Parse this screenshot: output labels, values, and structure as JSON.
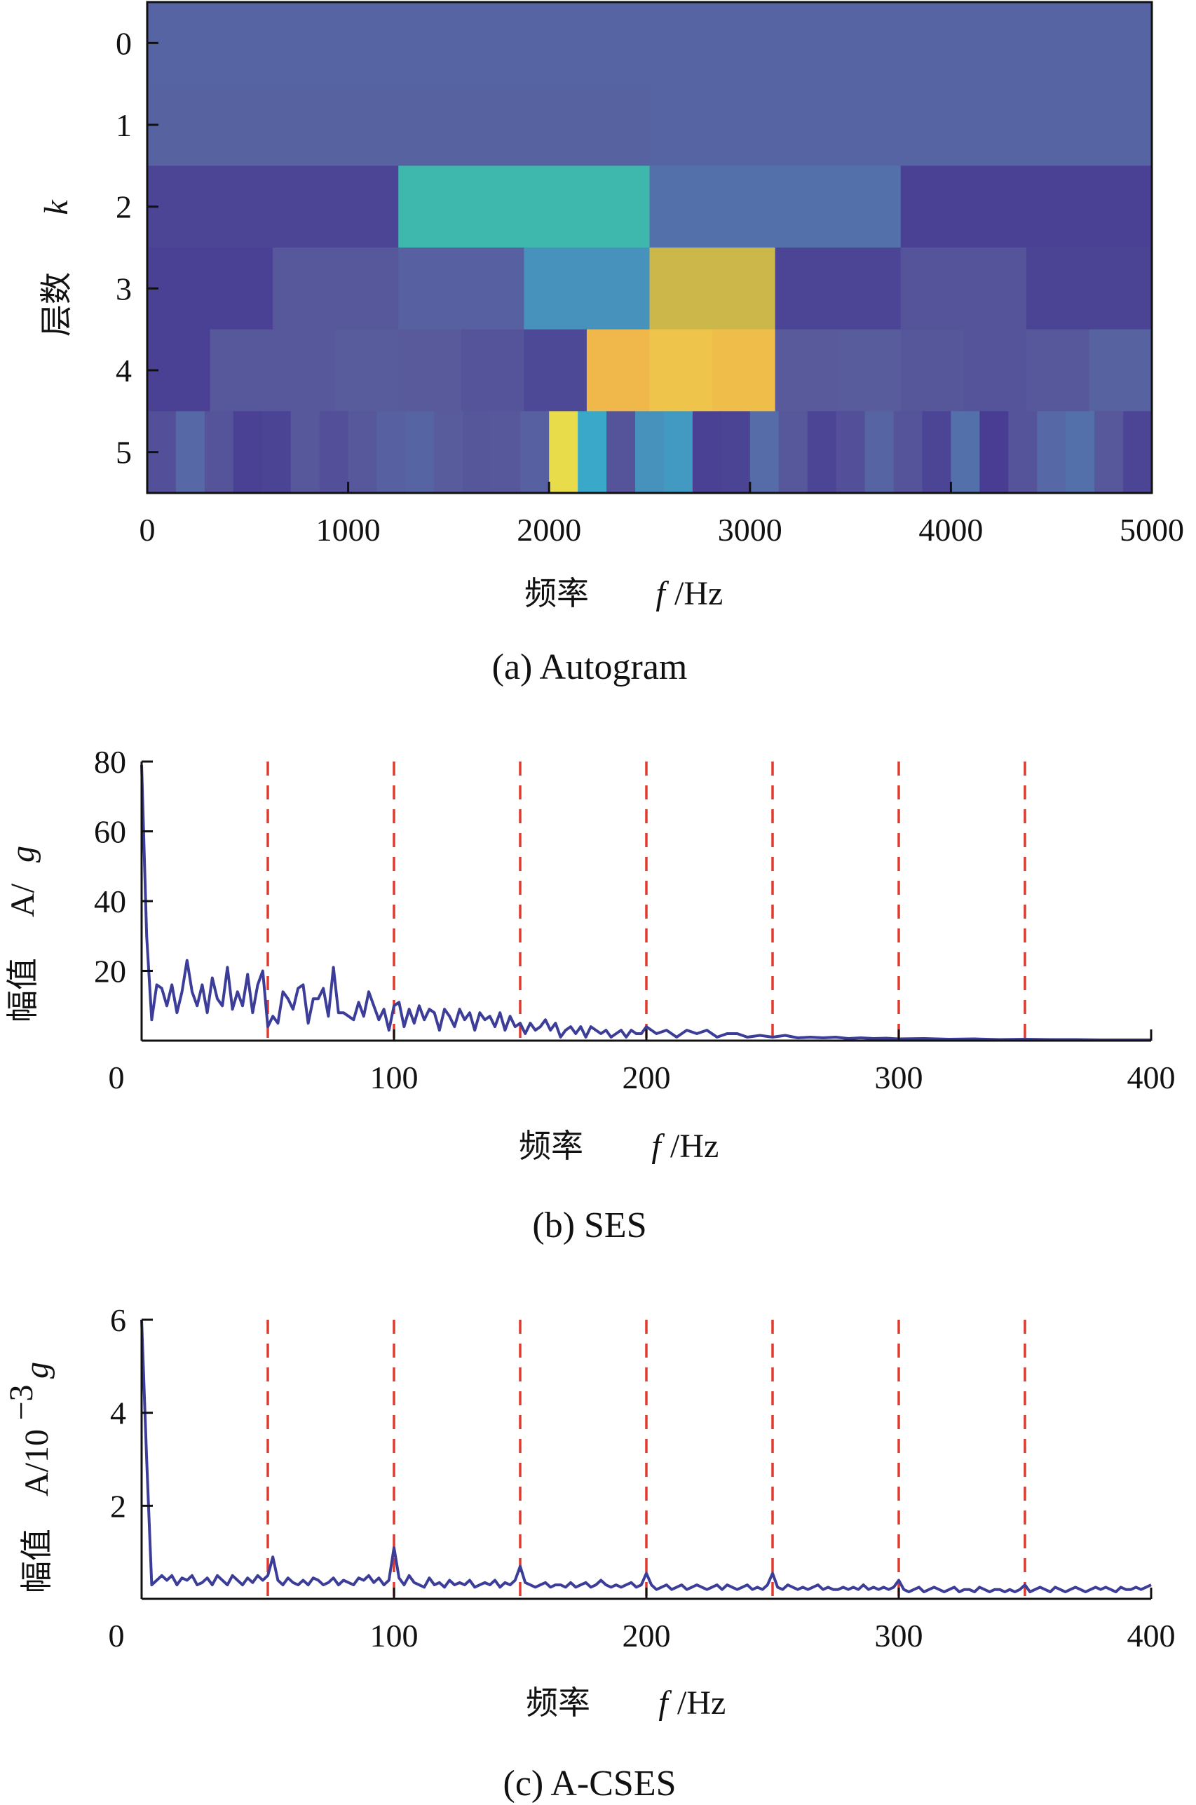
{
  "chart_data": [
    {
      "type": "heatmap",
      "caption": "(a) Autogram",
      "xlabel_prefix": "频率",
      "xlabel_var": "f",
      "xlabel_unit": "/Hz",
      "ylabel_prefix": "层数",
      "ylabel_var": "k",
      "xlim": [
        0,
        5000
      ],
      "xticks": [
        "0",
        "1000",
        "2000",
        "3000",
        "4000",
        "5000"
      ],
      "yticks": [
        "0",
        "1",
        "2",
        "3",
        "4",
        "5"
      ],
      "colormap": "parula",
      "rows": [
        {
          "level": 0,
          "values": [
            0.3
          ]
        },
        {
          "level": 1,
          "values": [
            0.29,
            0.3
          ]
        },
        {
          "level": 2,
          "values": [
            0.14,
            0.62,
            0.36,
            0.12
          ]
        },
        {
          "level": 3,
          "values": [
            0.12,
            0.24,
            0.28,
            0.48,
            0.86,
            0.14,
            0.22,
            0.13
          ]
        },
        {
          "level": 4,
          "values": [
            0.12,
            0.24,
            0.24,
            0.26,
            0.25,
            0.22,
            0.16,
            0.92,
            0.94,
            0.93,
            0.25,
            0.26,
            0.23,
            0.22,
            0.24,
            0.29
          ]
        },
        {
          "level": 5,
          "values": [
            0.2,
            0.32,
            0.22,
            0.12,
            0.13,
            0.24,
            0.2,
            0.24,
            0.28,
            0.3,
            0.26,
            0.23,
            0.24,
            0.28,
            0.98,
            0.55,
            0.22,
            0.48,
            0.5,
            0.12,
            0.13,
            0.34,
            0.24,
            0.14,
            0.2,
            0.3,
            0.22,
            0.14,
            0.36,
            0.1,
            0.22,
            0.32,
            0.36,
            0.24,
            0.14
          ]
        }
      ]
    },
    {
      "type": "line",
      "caption": "(b) SES",
      "xlabel_prefix": "频率",
      "xlabel_var": "f",
      "xlabel_unit": "/Hz",
      "ylabel_prefix": "幅值",
      "ylabel_unit": "A/",
      "ylabel_var": "g",
      "xlim": [
        0,
        400
      ],
      "ylim": [
        0,
        80
      ],
      "xticks": [
        "0",
        "100",
        "200",
        "300",
        "400"
      ],
      "yticks": [
        "20",
        "40",
        "60",
        "80"
      ],
      "fault_lines": [
        50,
        100,
        150,
        200,
        250,
        300,
        350
      ],
      "series": [
        {
          "color": "#3b3d99",
          "x": [
            0,
            2,
            4,
            6,
            8,
            10,
            12,
            14,
            16,
            18,
            20,
            22,
            24,
            26,
            28,
            30,
            32,
            34,
            36,
            38,
            40,
            42,
            44,
            46,
            48,
            50,
            52,
            54,
            56,
            58,
            60,
            62,
            64,
            66,
            68,
            70,
            72,
            74,
            76,
            78,
            80,
            82,
            84,
            86,
            88,
            90,
            92,
            94,
            96,
            98,
            100,
            102,
            104,
            106,
            108,
            110,
            112,
            114,
            116,
            118,
            120,
            122,
            124,
            126,
            128,
            130,
            132,
            134,
            136,
            138,
            140,
            142,
            144,
            146,
            148,
            150,
            152,
            154,
            156,
            158,
            160,
            162,
            164,
            166,
            168,
            170,
            172,
            174,
            176,
            178,
            180,
            182,
            184,
            186,
            188,
            190,
            192,
            194,
            196,
            198,
            200,
            204,
            208,
            212,
            216,
            220,
            224,
            228,
            232,
            236,
            240,
            245,
            250,
            255,
            260,
            265,
            270,
            275,
            280,
            285,
            290,
            295,
            300,
            310,
            320,
            330,
            340,
            350,
            360,
            370,
            380,
            390,
            400
          ],
          "y": [
            79,
            30,
            6,
            16,
            15,
            10,
            16,
            8,
            14,
            23,
            14,
            10,
            16,
            8,
            18,
            12,
            10,
            21,
            9,
            14,
            10,
            19,
            8,
            16,
            20,
            4,
            7,
            5,
            14,
            12,
            9,
            15,
            16,
            5,
            12,
            12,
            15,
            7,
            21,
            8,
            8,
            7,
            6,
            11,
            7,
            14,
            10,
            6,
            9,
            3,
            10,
            11,
            4,
            9,
            5,
            10,
            6,
            9,
            8,
            3,
            9,
            7,
            4,
            9,
            6,
            8,
            3,
            8,
            6,
            7,
            4,
            8,
            3,
            7,
            4,
            5,
            2,
            5,
            3,
            4,
            6,
            3,
            5,
            1,
            3,
            4,
            2,
            4,
            1,
            4,
            3,
            2,
            3,
            1,
            2,
            3,
            1,
            3,
            2,
            2,
            4,
            2,
            3,
            1,
            3,
            2,
            3,
            1,
            2,
            2,
            1,
            1.5,
            1,
            1.5,
            0.8,
            1,
            0.8,
            1,
            0.6,
            0.8,
            0.6,
            0.7,
            0.5,
            0.6,
            0.4,
            0.5,
            0.3,
            0.4,
            0.3,
            0.3,
            0.2,
            0.2,
            0.2
          ]
        }
      ]
    },
    {
      "type": "line",
      "caption": "(c) A-CSES",
      "xlabel_prefix": "频率",
      "xlabel_var": "f",
      "xlabel_unit": "/Hz",
      "ylabel_prefix": "幅值",
      "ylabel_unit": "A/10",
      "ylabel_exp": "−3",
      "ylabel_var": "g",
      "xlim": [
        0,
        400
      ],
      "ylim": [
        0,
        6
      ],
      "xticks": [
        "0",
        "100",
        "200",
        "300",
        "400"
      ],
      "yticks": [
        "2",
        "4",
        "6"
      ],
      "fault_lines": [
        50,
        100,
        150,
        200,
        250,
        300,
        350
      ],
      "series": [
        {
          "color": "#3b3d99",
          "x": [
            0,
            2,
            4,
            6,
            8,
            10,
            12,
            14,
            16,
            18,
            20,
            22,
            24,
            26,
            28,
            30,
            32,
            34,
            36,
            38,
            40,
            42,
            44,
            46,
            48,
            50,
            52,
            54,
            56,
            58,
            60,
            62,
            64,
            66,
            68,
            70,
            72,
            74,
            76,
            78,
            80,
            82,
            84,
            86,
            88,
            90,
            92,
            94,
            96,
            98,
            100,
            102,
            104,
            106,
            108,
            110,
            112,
            114,
            116,
            118,
            120,
            122,
            124,
            126,
            128,
            130,
            132,
            134,
            136,
            138,
            140,
            142,
            144,
            146,
            148,
            150,
            152,
            154,
            156,
            158,
            160,
            162,
            164,
            166,
            168,
            170,
            172,
            174,
            176,
            178,
            180,
            182,
            184,
            186,
            188,
            190,
            192,
            194,
            196,
            198,
            200,
            202,
            204,
            206,
            208,
            210,
            212,
            214,
            216,
            218,
            220,
            222,
            224,
            226,
            228,
            230,
            232,
            234,
            236,
            238,
            240,
            242,
            244,
            246,
            248,
            250,
            252,
            254,
            256,
            258,
            260,
            262,
            264,
            266,
            268,
            270,
            272,
            274,
            276,
            278,
            280,
            282,
            284,
            286,
            288,
            290,
            292,
            294,
            296,
            298,
            300,
            302,
            304,
            306,
            308,
            310,
            312,
            314,
            316,
            318,
            320,
            322,
            324,
            326,
            328,
            330,
            332,
            334,
            336,
            338,
            340,
            342,
            344,
            346,
            348,
            350,
            352,
            354,
            356,
            358,
            360,
            362,
            364,
            366,
            368,
            370,
            372,
            374,
            376,
            378,
            380,
            382,
            384,
            386,
            388,
            390,
            392,
            394,
            396,
            398,
            400
          ],
          "y": [
            6.0,
            3.0,
            0.3,
            0.4,
            0.5,
            0.4,
            0.5,
            0.3,
            0.45,
            0.4,
            0.5,
            0.3,
            0.35,
            0.45,
            0.3,
            0.5,
            0.4,
            0.3,
            0.5,
            0.4,
            0.3,
            0.45,
            0.35,
            0.5,
            0.4,
            0.5,
            0.9,
            0.4,
            0.3,
            0.45,
            0.35,
            0.3,
            0.4,
            0.3,
            0.45,
            0.4,
            0.3,
            0.35,
            0.45,
            0.3,
            0.4,
            0.35,
            0.3,
            0.45,
            0.4,
            0.5,
            0.35,
            0.45,
            0.3,
            0.4,
            1.1,
            0.45,
            0.3,
            0.5,
            0.35,
            0.3,
            0.25,
            0.45,
            0.3,
            0.35,
            0.25,
            0.4,
            0.3,
            0.35,
            0.3,
            0.4,
            0.25,
            0.3,
            0.35,
            0.3,
            0.4,
            0.25,
            0.35,
            0.3,
            0.4,
            0.7,
            0.35,
            0.3,
            0.25,
            0.3,
            0.35,
            0.25,
            0.3,
            0.3,
            0.25,
            0.35,
            0.25,
            0.3,
            0.35,
            0.25,
            0.3,
            0.4,
            0.3,
            0.25,
            0.3,
            0.25,
            0.3,
            0.35,
            0.25,
            0.3,
            0.55,
            0.3,
            0.2,
            0.25,
            0.3,
            0.2,
            0.25,
            0.3,
            0.2,
            0.25,
            0.3,
            0.25,
            0.2,
            0.25,
            0.3,
            0.2,
            0.3,
            0.25,
            0.2,
            0.25,
            0.3,
            0.2,
            0.25,
            0.2,
            0.3,
            0.55,
            0.25,
            0.2,
            0.3,
            0.25,
            0.2,
            0.25,
            0.2,
            0.25,
            0.3,
            0.2,
            0.25,
            0.2,
            0.2,
            0.25,
            0.2,
            0.25,
            0.2,
            0.3,
            0.2,
            0.25,
            0.2,
            0.25,
            0.2,
            0.25,
            0.4,
            0.2,
            0.15,
            0.2,
            0.25,
            0.15,
            0.2,
            0.25,
            0.2,
            0.15,
            0.2,
            0.25,
            0.15,
            0.2,
            0.2,
            0.15,
            0.25,
            0.2,
            0.15,
            0.2,
            0.2,
            0.15,
            0.2,
            0.15,
            0.2,
            0.3,
            0.15,
            0.2,
            0.25,
            0.2,
            0.15,
            0.25,
            0.2,
            0.15,
            0.2,
            0.25,
            0.2,
            0.15,
            0.2,
            0.25,
            0.2,
            0.25,
            0.2,
            0.15,
            0.25,
            0.2,
            0.2,
            0.25,
            0.2,
            0.25,
            0.3
          ]
        }
      ]
    }
  ]
}
